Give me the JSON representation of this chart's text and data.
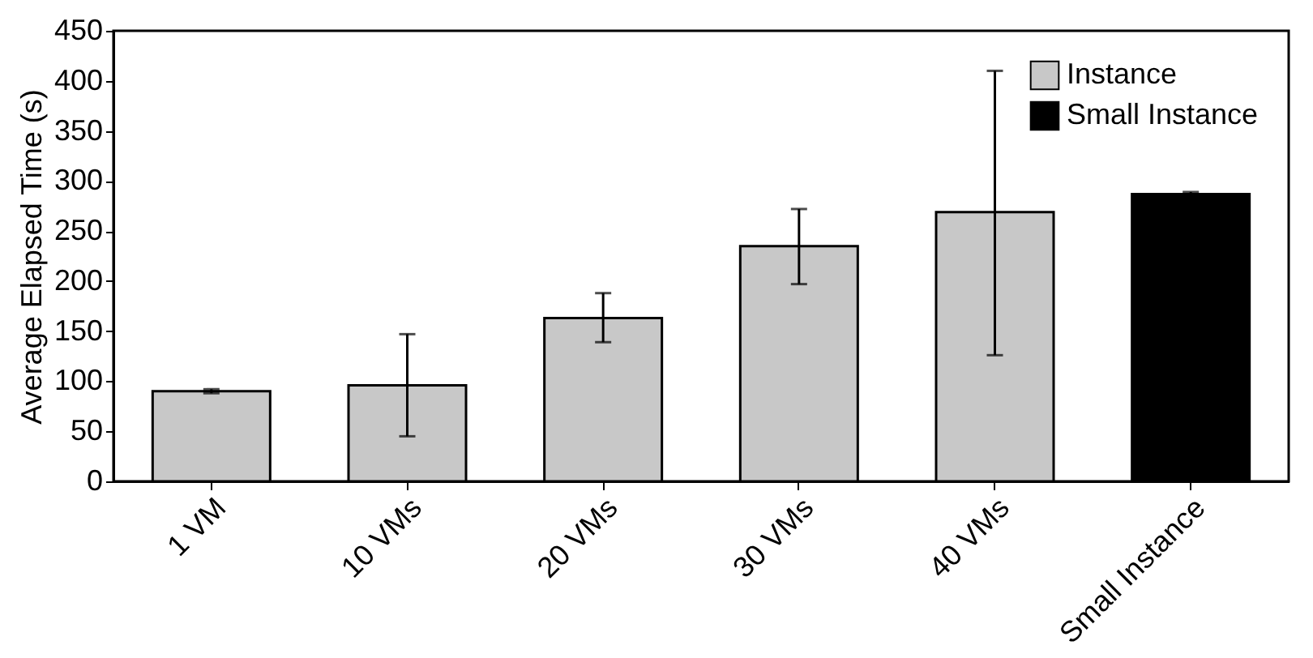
{
  "chart_data": {
    "type": "bar",
    "ylabel": "Average Elapsed Time (s)",
    "categories": [
      "1 VM",
      "10 VMs",
      "20 VMs",
      "30 VMs",
      "40 VMs",
      "Small Instance"
    ],
    "series": [
      {
        "name": "Instance",
        "color": "#c8c8c8",
        "values": [
          90,
          96,
          163,
          235,
          269,
          null
        ],
        "errors": [
          [
            88,
            92
          ],
          [
            45,
            147
          ],
          [
            139,
            188
          ],
          [
            197,
            272
          ],
          [
            126,
            410
          ],
          null
        ]
      },
      {
        "name": "Small Instance",
        "color": "#000000",
        "values": [
          null,
          null,
          null,
          null,
          null,
          287
        ],
        "errors": [
          null,
          null,
          null,
          null,
          null,
          [
            285,
            289
          ]
        ]
      }
    ],
    "ylim": [
      0,
      450
    ],
    "yticks": [
      0,
      50,
      100,
      150,
      200,
      250,
      300,
      350,
      400,
      450
    ],
    "grid": false,
    "legend": "top right"
  }
}
